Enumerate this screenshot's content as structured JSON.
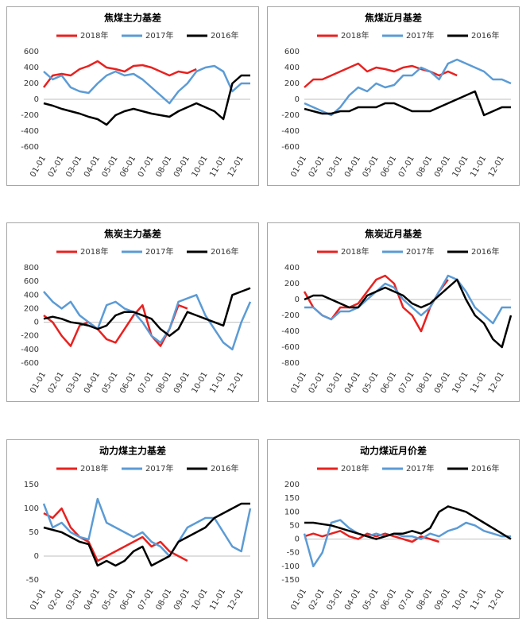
{
  "chart_data": [
    {
      "type": "line",
      "title": "焦煤主力基差",
      "categories": [
        "01-01",
        null,
        "02-01",
        null,
        "03-01",
        null,
        "04-01",
        null,
        "05-01",
        null,
        "06-01",
        null,
        "07-01",
        null,
        "08-01",
        null,
        "09-01",
        null,
        "10-01",
        null,
        "11-01",
        null,
        "12-01",
        null
      ],
      "series": [
        {
          "name": "2018年",
          "color": "#e8211f",
          "values": [
            150,
            300,
            320,
            300,
            380,
            420,
            480,
            400,
            380,
            350,
            420,
            430,
            400,
            350,
            300,
            350,
            330,
            380,
            null,
            null,
            null,
            null,
            null,
            null
          ]
        },
        {
          "name": "2017年",
          "color": "#5b9bd5",
          "values": [
            350,
            250,
            300,
            150,
            100,
            80,
            200,
            300,
            350,
            300,
            320,
            250,
            150,
            50,
            -50,
            100,
            200,
            350,
            400,
            420,
            350,
            100,
            200,
            200
          ]
        },
        {
          "name": "2016年",
          "color": "#000000",
          "values": [
            -50,
            -80,
            -120,
            -150,
            -180,
            -220,
            -250,
            -320,
            -200,
            -150,
            -120,
            -150,
            -180,
            -200,
            -220,
            -150,
            -100,
            -50,
            -100,
            -150,
            -250,
            200,
            300,
            300
          ]
        }
      ],
      "ylim": [
        -600,
        600
      ],
      "yticks": [
        -600,
        -400,
        -200,
        0,
        200,
        400,
        600
      ],
      "grid": false
    },
    {
      "type": "line",
      "title": "焦煤近月基差",
      "categories": [
        "01-01",
        null,
        "02-01",
        null,
        "03-01",
        null,
        "04-01",
        null,
        "05-01",
        null,
        "06-01",
        null,
        "07-01",
        null,
        "08-01",
        null,
        "09-01",
        null,
        "10-01",
        null,
        "11-01",
        null,
        "12-01",
        null
      ],
      "series": [
        {
          "name": "2018年",
          "color": "#e8211f",
          "values": [
            150,
            250,
            250,
            300,
            350,
            400,
            450,
            350,
            400,
            380,
            350,
            400,
            420,
            380,
            350,
            300,
            350,
            300,
            null,
            null,
            null,
            null,
            null,
            null
          ]
        },
        {
          "name": "2017年",
          "color": "#5b9bd5",
          "values": [
            -50,
            -100,
            -150,
            -200,
            -100,
            50,
            150,
            100,
            200,
            150,
            180,
            300,
            300,
            400,
            350,
            250,
            450,
            500,
            450,
            400,
            350,
            250,
            250,
            200
          ]
        },
        {
          "name": "2016年",
          "color": "#000000",
          "values": [
            -120,
            -150,
            -180,
            -180,
            -150,
            -150,
            -100,
            -100,
            -100,
            -50,
            -50,
            -100,
            -150,
            -150,
            -150,
            -100,
            -50,
            0,
            50,
            100,
            -200,
            -150,
            -100,
            -100
          ]
        }
      ],
      "ylim": [
        -600,
        600
      ],
      "yticks": [
        -600,
        -400,
        -200,
        0,
        200,
        400,
        600
      ],
      "grid": false
    },
    {
      "type": "line",
      "title": "焦炭主力基差",
      "categories": [
        "01-01",
        null,
        "02-01",
        null,
        "03-01",
        null,
        "04-01",
        null,
        "05-01",
        null,
        "06-01",
        null,
        "07-01",
        null,
        "08-01",
        null,
        "09-01",
        null,
        "10-01",
        null,
        "11-01",
        null,
        "12-01",
        null
      ],
      "series": [
        {
          "name": "2018年",
          "color": "#e8211f",
          "values": [
            100,
            0,
            -200,
            -350,
            -50,
            0,
            -100,
            -250,
            -300,
            -100,
            100,
            250,
            -200,
            -350,
            -100,
            250,
            200,
            null,
            null,
            null,
            null,
            null,
            null,
            null
          ]
        },
        {
          "name": "2017年",
          "color": "#5b9bd5",
          "values": [
            450,
            300,
            200,
            300,
            100,
            0,
            -100,
            250,
            300,
            200,
            150,
            0,
            -200,
            -300,
            -100,
            300,
            350,
            400,
            100,
            -100,
            -300,
            -400,
            0,
            300
          ]
        },
        {
          "name": "2016年",
          "color": "#000000",
          "values": [
            50,
            80,
            50,
            0,
            -20,
            -50,
            -100,
            -50,
            100,
            150,
            150,
            100,
            50,
            -100,
            -200,
            -100,
            150,
            100,
            50,
            0,
            -50,
            400,
            450,
            500
          ]
        }
      ],
      "ylim": [
        -600,
        800
      ],
      "yticks": [
        -600,
        -400,
        -200,
        0,
        200,
        400,
        600,
        800
      ],
      "grid": false
    },
    {
      "type": "line",
      "title": "焦炭近月基差",
      "categories": [
        "01-01",
        null,
        "02-01",
        null,
        "03-01",
        null,
        "04-01",
        null,
        "05-01",
        null,
        "06-01",
        null,
        "07-01",
        null,
        "08-01",
        null,
        "09-01",
        null,
        "10-01",
        null,
        "11-01",
        null,
        "12-01",
        null
      ],
      "series": [
        {
          "name": "2018年",
          "color": "#e8211f",
          "values": [
            100,
            -100,
            -200,
            -250,
            -100,
            -100,
            -50,
            100,
            250,
            300,
            200,
            -100,
            -200,
            -400,
            -100,
            100,
            250,
            null,
            null,
            null,
            null,
            null,
            null,
            null
          ]
        },
        {
          "name": "2017年",
          "color": "#5b9bd5",
          "values": [
            -100,
            -100,
            -200,
            -250,
            -150,
            -150,
            -100,
            0,
            100,
            200,
            150,
            0,
            -100,
            -200,
            -100,
            100,
            300,
            250,
            100,
            -100,
            -200,
            -300,
            -100,
            -100
          ]
        },
        {
          "name": "2016年",
          "color": "#000000",
          "values": [
            0,
            50,
            50,
            0,
            -50,
            -100,
            -100,
            50,
            100,
            150,
            100,
            50,
            -50,
            -100,
            -50,
            50,
            150,
            250,
            0,
            -200,
            -300,
            -500,
            -600,
            -200
          ]
        }
      ],
      "ylim": [
        -800,
        400
      ],
      "yticks": [
        -800,
        -600,
        -400,
        -200,
        0,
        200,
        400
      ],
      "grid": false
    },
    {
      "type": "line",
      "title": "动力煤主力基差",
      "categories": [
        "01-01",
        null,
        "02-01",
        null,
        "03-01",
        null,
        "04-01",
        null,
        "05-01",
        null,
        "06-01",
        null,
        "07-01",
        null,
        "08-01",
        null,
        "09-01",
        null,
        "10-01",
        null,
        "11-01",
        null,
        "12-01",
        null
      ],
      "series": [
        {
          "name": "2018年",
          "color": "#e8211f",
          "values": [
            90,
            80,
            100,
            60,
            40,
            30,
            -10,
            0,
            10,
            20,
            30,
            40,
            20,
            30,
            10,
            0,
            -10,
            null,
            null,
            null,
            null,
            null,
            null,
            null
          ]
        },
        {
          "name": "2017年",
          "color": "#5b9bd5",
          "values": [
            110,
            60,
            70,
            50,
            40,
            35,
            120,
            70,
            60,
            50,
            40,
            50,
            30,
            20,
            0,
            30,
            60,
            70,
            80,
            80,
            50,
            20,
            10,
            100
          ]
        },
        {
          "name": "2016年",
          "color": "#000000",
          "values": [
            60,
            55,
            50,
            40,
            30,
            25,
            -20,
            -10,
            -20,
            -10,
            10,
            20,
            -20,
            -10,
            0,
            30,
            40,
            50,
            60,
            80,
            90,
            100,
            110,
            110
          ]
        }
      ],
      "ylim": [
        -50,
        150
      ],
      "yticks": [
        -50,
        0,
        50,
        100,
        150
      ],
      "grid": false
    },
    {
      "type": "line",
      "title": "动力煤近月价差",
      "categories": [
        "01-01",
        null,
        "02-01",
        null,
        "03-01",
        null,
        "04-01",
        null,
        "05-01",
        null,
        "06-01",
        null,
        "07-01",
        null,
        "08-01",
        null,
        "09-01",
        null,
        "10-01",
        null,
        "11-01",
        null,
        "12-01",
        null
      ],
      "series": [
        {
          "name": "2018年",
          "color": "#e8211f",
          "values": [
            10,
            20,
            10,
            20,
            30,
            10,
            0,
            20,
            10,
            20,
            10,
            0,
            -10,
            10,
            0,
            -10,
            null,
            null,
            null,
            null,
            null,
            null,
            null,
            null
          ]
        },
        {
          "name": "2017年",
          "color": "#5b9bd5",
          "values": [
            20,
            -100,
            -50,
            60,
            70,
            40,
            20,
            10,
            20,
            10,
            20,
            10,
            10,
            0,
            20,
            10,
            30,
            40,
            60,
            50,
            30,
            20,
            10,
            10
          ]
        },
        {
          "name": "2016年",
          "color": "#000000",
          "values": [
            60,
            60,
            55,
            50,
            40,
            30,
            20,
            10,
            0,
            10,
            20,
            20,
            30,
            20,
            40,
            100,
            120,
            110,
            100,
            80,
            60,
            40,
            20,
            0
          ]
        }
      ],
      "ylim": [
        -150,
        200
      ],
      "yticks": [
        -150,
        -100,
        -50,
        0,
        50,
        100,
        150,
        200
      ],
      "grid": false
    }
  ]
}
